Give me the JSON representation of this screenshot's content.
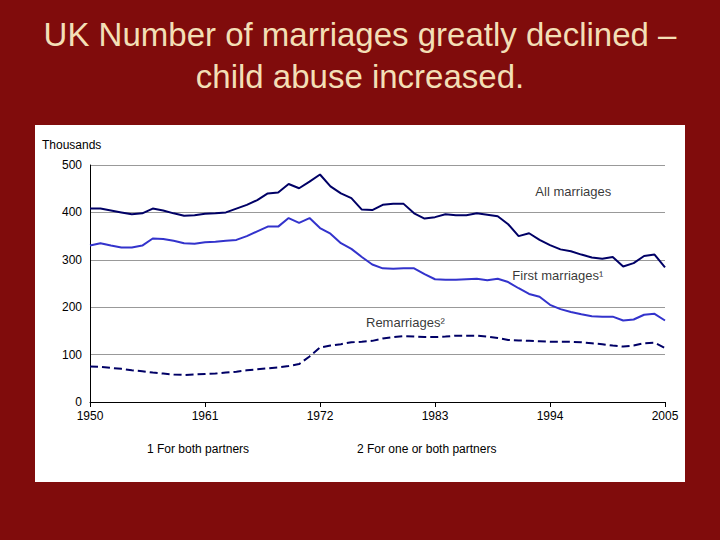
{
  "chart_data": {
    "type": "line",
    "title": "UK Number of marriages greatly declined – child abuse increased.",
    "y_label": "Thousands",
    "x": [
      1950,
      1951,
      1952,
      1953,
      1954,
      1955,
      1956,
      1957,
      1958,
      1959,
      1960,
      1961,
      1962,
      1963,
      1964,
      1965,
      1966,
      1967,
      1968,
      1969,
      1970,
      1971,
      1972,
      1973,
      1974,
      1975,
      1976,
      1977,
      1978,
      1979,
      1980,
      1981,
      1982,
      1983,
      1984,
      1985,
      1986,
      1987,
      1988,
      1989,
      1990,
      1991,
      1992,
      1993,
      1994,
      1995,
      1996,
      1997,
      1998,
      1999,
      2000,
      2001,
      2002,
      2003,
      2004,
      2005
    ],
    "series": [
      {
        "name": "All marriages",
        "color": "#000066",
        "line_style": "solid",
        "values": [
          408,
          408,
          404,
          400,
          396,
          398,
          408,
          404,
          398,
          393,
          394,
          397,
          398,
          400,
          408,
          416,
          426,
          440,
          442,
          460,
          451,
          465,
          480,
          455,
          440,
          430,
          406,
          405,
          416,
          418,
          418,
          398,
          387,
          390,
          396,
          394,
          394,
          398,
          395,
          392,
          375,
          350,
          356,
          342,
          331,
          322,
          318,
          311,
          305,
          302,
          306,
          286,
          293,
          308,
          311,
          284
        ]
      },
      {
        "name": "First marriages¹",
        "color": "#3333cc",
        "line_style": "solid",
        "values": [
          330,
          335,
          330,
          326,
          326,
          330,
          345,
          344,
          340,
          335,
          334,
          337,
          338,
          340,
          342,
          350,
          360,
          370,
          370,
          388,
          378,
          388,
          367,
          355,
          335,
          323,
          306,
          290,
          282,
          281,
          282,
          282,
          270,
          259,
          258,
          258,
          259,
          260,
          257,
          260,
          253,
          240,
          228,
          222,
          205,
          196,
          190,
          185,
          181,
          180,
          180,
          172,
          174,
          184,
          186,
          172
        ]
      },
      {
        "name": "Remarriages²",
        "color": "#000066",
        "line_style": "dashed",
        "values": [
          75,
          74,
          72,
          70,
          67,
          65,
          62,
          60,
          58,
          57,
          58,
          59,
          60,
          62,
          64,
          67,
          69,
          71,
          73,
          76,
          80,
          96,
          115,
          119,
          122,
          126,
          127,
          129,
          134,
          137,
          139,
          138,
          137,
          137,
          138,
          140,
          140,
          140,
          138,
          135,
          131,
          130,
          129,
          128,
          127,
          127,
          127,
          126,
          124,
          122,
          119,
          117,
          119,
          124,
          125,
          114
        ]
      }
    ],
    "xlim": [
      1950,
      2005
    ],
    "xticks": [
      1950,
      1961,
      1972,
      1983,
      1994,
      2005
    ],
    "ylim": [
      0,
      500
    ],
    "yticks": [
      0,
      100,
      200,
      300,
      400,
      500
    ],
    "grid": true,
    "annotations": [
      {
        "text": "All marriages",
        "x": 1992.6,
        "y": 445
      },
      {
        "text": "First marriages¹",
        "x": 1990.4,
        "y": 266
      },
      {
        "text": "Remarriages²",
        "x": 1976.4,
        "y": 168
      }
    ],
    "notes": [
      "1 For both partners",
      "2 For one or both partners"
    ]
  }
}
